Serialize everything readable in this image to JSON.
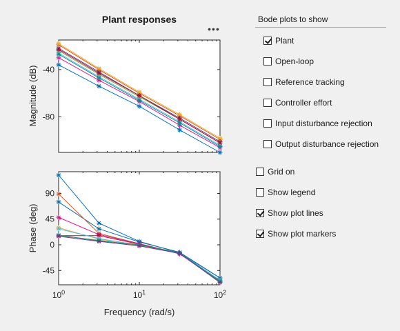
{
  "figure": {
    "title": "Plant responses",
    "more_icon": "ellipsis-icon",
    "magnitude_ylabel": "Magnitude (dB)",
    "phase_ylabel": "Phase (deg)",
    "xlabel": "Frequency (rad/s)"
  },
  "controls": {
    "bode_group_title": "Bode plots to show",
    "bode_options": [
      {
        "label": "Plant",
        "checked": true
      },
      {
        "label": "Open-loop",
        "checked": false
      },
      {
        "label": "Reference tracking",
        "checked": false
      },
      {
        "label": "Controller effort",
        "checked": false
      },
      {
        "label": "Input disturbance rejection",
        "checked": false
      },
      {
        "label": "Output disturbance rejection",
        "checked": false
      }
    ],
    "display_options": [
      {
        "label": "Grid on",
        "checked": false
      },
      {
        "label": "Show legend",
        "checked": false
      },
      {
        "label": "Show plot lines",
        "checked": true
      },
      {
        "label": "Show plot markers",
        "checked": true
      }
    ]
  },
  "chart_data": [
    {
      "type": "line",
      "title": "Plant responses",
      "ylabel": "Magnitude (dB)",
      "xscale": "log",
      "xlim": [
        1,
        100
      ],
      "ylim": [
        -110,
        -15
      ],
      "yticks": [
        -40,
        -80
      ],
      "grid": false,
      "marker": "asterisk",
      "x": [
        1,
        3.16,
        10,
        31.6,
        100
      ],
      "series": [
        {
          "color": "#0072bd",
          "values": [
            -36,
            -54,
            -71,
            -91,
            -110
          ]
        },
        {
          "color": "#d95319",
          "values": [
            -19,
            -40,
            -60,
            -79,
            -99
          ]
        },
        {
          "color": "#edb120",
          "values": [
            -18,
            -39,
            -59,
            -78,
            -98
          ]
        },
        {
          "color": "#7e2f8e",
          "values": [
            -22,
            -42,
            -62,
            -81,
            -101
          ]
        },
        {
          "color": "#77ac30",
          "values": [
            -24,
            -44,
            -63,
            -82,
            -102
          ]
        },
        {
          "color": "#4dbeee",
          "values": [
            -26,
            -46,
            -65,
            -84,
            -104
          ]
        },
        {
          "color": "#a2142f",
          "values": [
            -23,
            -43,
            -62,
            -82,
            -102
          ]
        },
        {
          "color": "#e6149a",
          "values": [
            -30,
            -49,
            -67,
            -87,
            -106
          ]
        },
        {
          "color": "#0f8a8a",
          "values": [
            -27,
            -47,
            -66,
            -85,
            -105
          ]
        }
      ]
    },
    {
      "type": "line",
      "ylabel": "Phase (deg)",
      "xlabel": "Frequency (rad/s)",
      "xscale": "log",
      "xlim": [
        1,
        100
      ],
      "ylim": [
        -70,
        128
      ],
      "yticks": [
        90,
        45,
        0,
        -45
      ],
      "xticks": [
        "10^0",
        "10^1",
        "10^2"
      ],
      "grid": false,
      "marker": "asterisk",
      "x": [
        1,
        3.16,
        10,
        31.6,
        100
      ],
      "series": [
        {
          "color": "#0072bd",
          "values": [
            122,
            38,
            6,
            -14,
            -58
          ]
        },
        {
          "color": "#0f6fa8",
          "values": [
            75,
            28,
            5,
            -13,
            -58
          ]
        },
        {
          "color": "#d95319",
          "values": [
            89,
            20,
            2,
            -15,
            -62
          ]
        },
        {
          "color": "#e6149a",
          "values": [
            48,
            18,
            2,
            -16,
            -64
          ]
        },
        {
          "color": "#a2142f",
          "values": [
            16,
            16,
            1,
            -15,
            -63
          ]
        },
        {
          "color": "#edb120",
          "values": [
            30,
            10,
            0,
            -14,
            -64
          ]
        },
        {
          "color": "#4dbeee",
          "values": [
            28,
            11,
            -1,
            -14,
            -62
          ]
        },
        {
          "color": "#77ac30",
          "values": [
            16,
            8,
            -1,
            -15,
            -65
          ]
        },
        {
          "color": "#0f8a8a",
          "values": [
            17,
            7,
            0,
            -14,
            -64
          ]
        },
        {
          "color": "#7e2f8e",
          "values": [
            15,
            6,
            -2,
            -15,
            -66
          ]
        }
      ]
    }
  ]
}
